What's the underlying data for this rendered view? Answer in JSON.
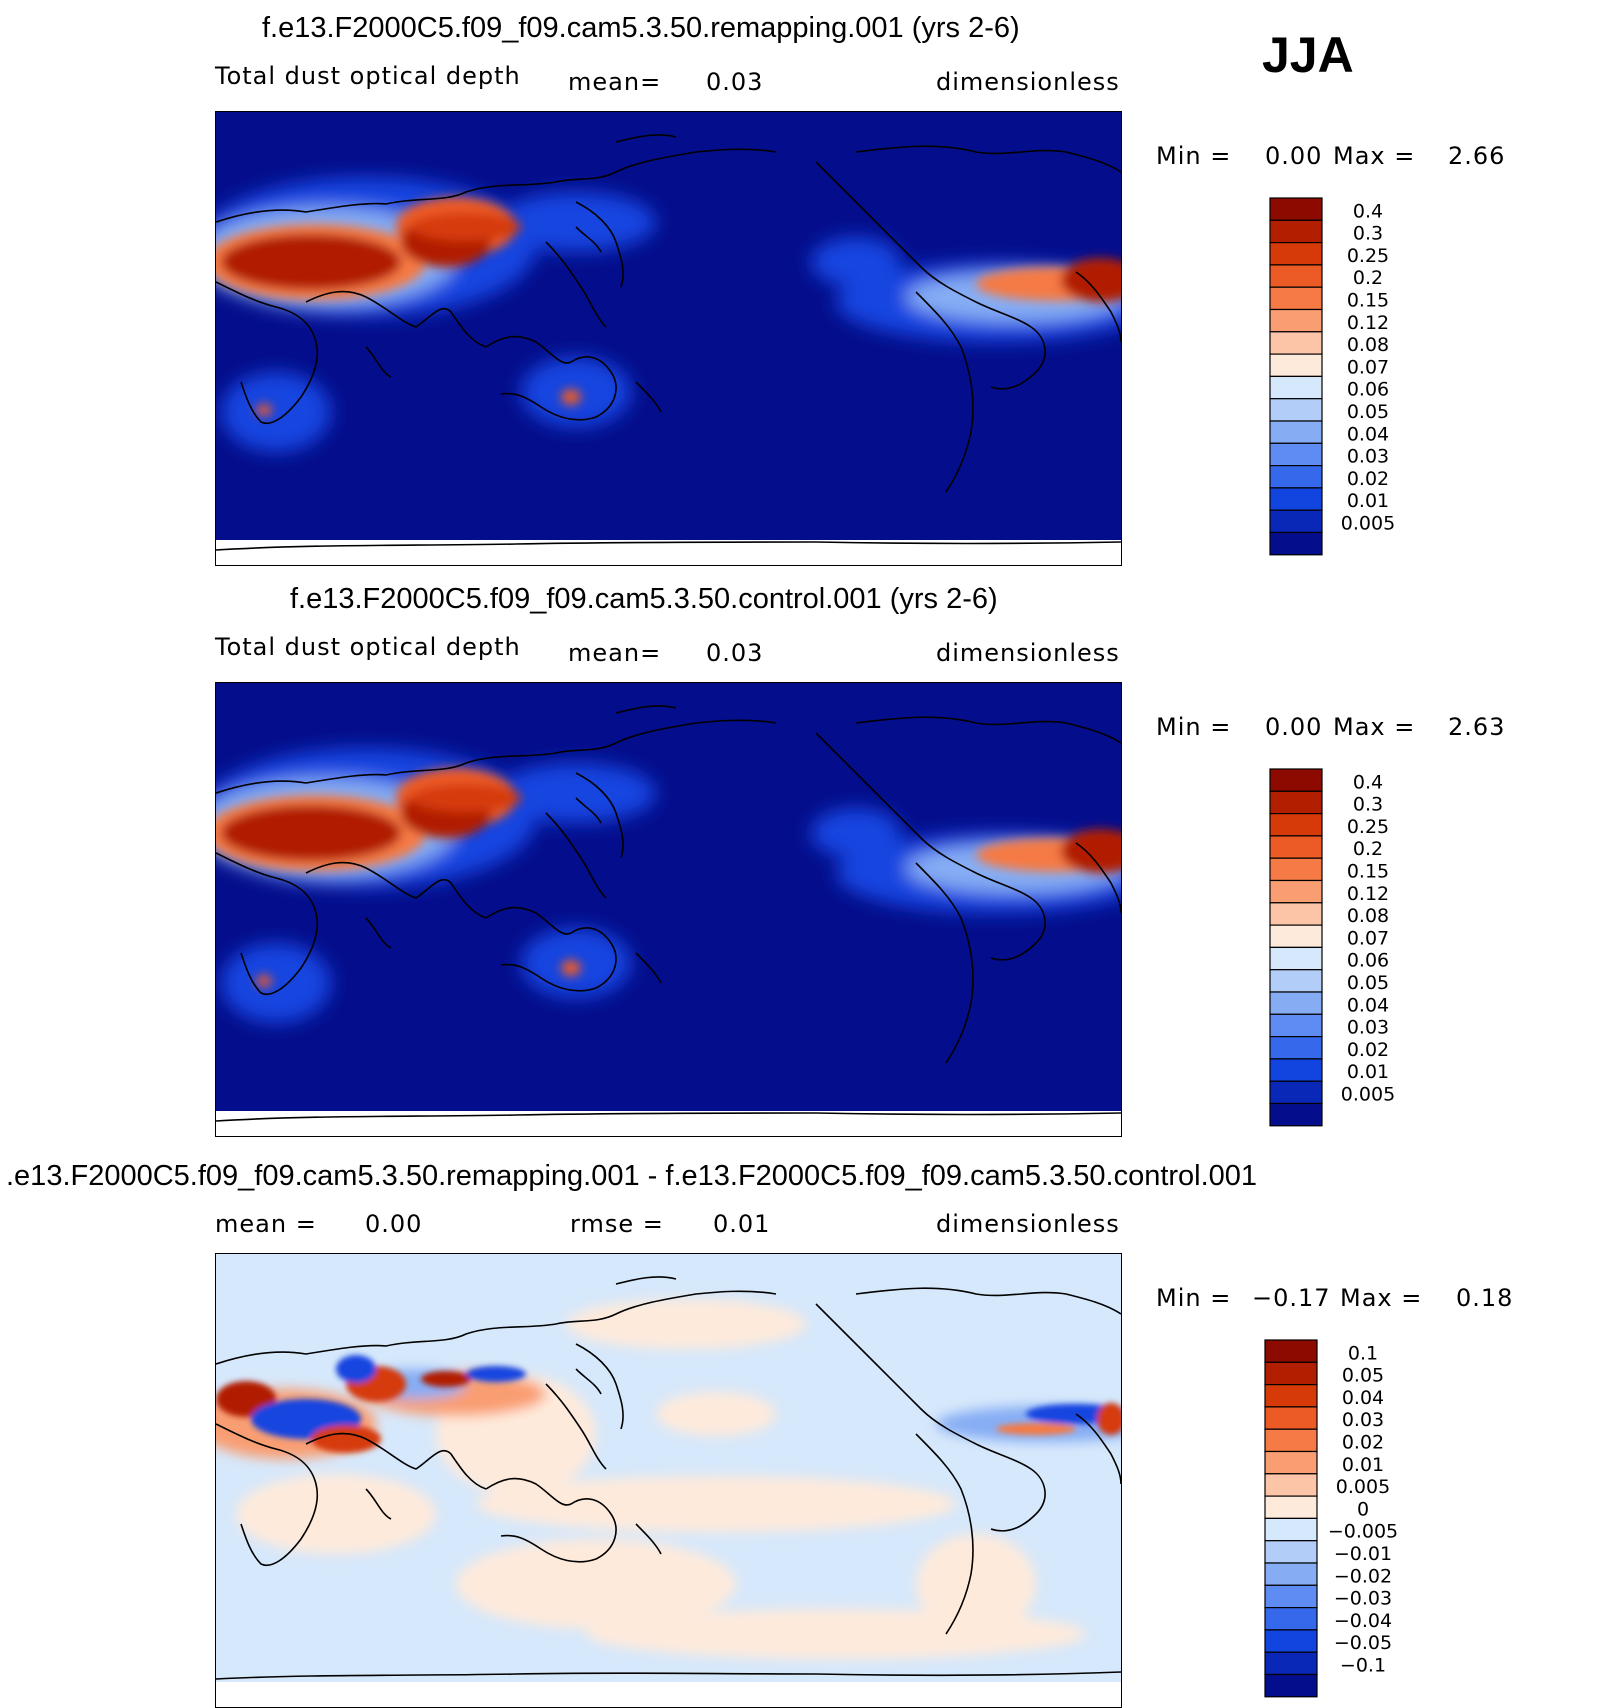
{
  "season_label": "JJA",
  "panels": [
    {
      "title": "f.e13.F2000C5.f09_f09.cam5.3.50.remapping.001 (yrs 2-6)",
      "left_label": "Total dust optical depth",
      "mid_label": "mean=",
      "mid_value": "0.03",
      "units": "dimensionless",
      "min_label": "Min =",
      "min_value": "0.00",
      "max_label": "Max =",
      "max_value": "2.66"
    },
    {
      "title": "f.e13.F2000C5.f09_f09.cam5.3.50.control.001 (yrs 2-6)",
      "left_label": "Total dust optical depth",
      "mid_label": "mean=",
      "mid_value": "0.03",
      "units": "dimensionless",
      "min_label": "Min =",
      "min_value": "0.00",
      "max_label": "Max =",
      "max_value": "2.63"
    },
    {
      "title": ".e13.F2000C5.f09_f09.cam5.3.50.remapping.001 - f.e13.F2000C5.f09_f09.cam5.3.50.control.001",
      "left_label": "mean =",
      "left_value": "0.00",
      "mid_label": "rmse =",
      "mid_value": "0.01",
      "units": "dimensionless",
      "min_label": "Min =",
      "min_value": "−0.17",
      "max_label": "Max =",
      "max_value": "0.18"
    }
  ],
  "chart_data": [
    {
      "type": "heatmap",
      "title": "f.e13.F2000C5.f09_f09.cam5.3.50.remapping.001 (yrs 2-6)",
      "variable": "Total dust optical depth",
      "units": "dimensionless",
      "mean": 0.03,
      "min": 0.0,
      "max": 2.66,
      "colorbar_levels": [
        "0.4",
        "0.3",
        "0.25",
        "0.2",
        "0.15",
        "0.12",
        "0.08",
        "0.07",
        "0.06",
        "0.05",
        "0.04",
        "0.03",
        "0.02",
        "0.01",
        "0.005"
      ],
      "colorbar_colors": [
        "#8c0a00",
        "#b11f00",
        "#d63a08",
        "#ec5a25",
        "#f57a45",
        "#f99e72",
        "#fcc5a8",
        "#feeadb",
        "#d6e8fb",
        "#b2cdf7",
        "#86adf4",
        "#5e8cf2",
        "#3568ea",
        "#1244e0",
        "#0a28b8",
        "#040e8c"
      ]
    },
    {
      "type": "heatmap",
      "title": "f.e13.F2000C5.f09_f09.cam5.3.50.control.001 (yrs 2-6)",
      "variable": "Total dust optical depth",
      "units": "dimensionless",
      "mean": 0.03,
      "min": 0.0,
      "max": 2.63,
      "colorbar_levels": [
        "0.4",
        "0.3",
        "0.25",
        "0.2",
        "0.15",
        "0.12",
        "0.08",
        "0.07",
        "0.06",
        "0.05",
        "0.04",
        "0.03",
        "0.02",
        "0.01",
        "0.005"
      ],
      "colorbar_colors": [
        "#8c0a00",
        "#b11f00",
        "#d63a08",
        "#ec5a25",
        "#f57a45",
        "#f99e72",
        "#fcc5a8",
        "#feeadb",
        "#d6e8fb",
        "#b2cdf7",
        "#86adf4",
        "#5e8cf2",
        "#3568ea",
        "#1244e0",
        "#0a28b8",
        "#040e8c"
      ]
    },
    {
      "type": "heatmap",
      "title": ".e13.F2000C5.f09_f09.cam5.3.50.remapping.001 - f.e13.F2000C5.f09_f09.cam5.3.50.control.001",
      "units": "dimensionless",
      "mean": 0.0,
      "rmse": 0.01,
      "min": -0.17,
      "max": 0.18,
      "colorbar_levels": [
        "0.1",
        "0.05",
        "0.04",
        "0.03",
        "0.02",
        "0.01",
        "0.005",
        "0",
        "−0.005",
        "−0.01",
        "−0.02",
        "−0.03",
        "−0.04",
        "−0.05",
        "−0.1"
      ],
      "colorbar_colors": [
        "#8c0a00",
        "#b11f00",
        "#d63a08",
        "#ec5a25",
        "#f57a45",
        "#f99e72",
        "#fcc5a8",
        "#feeadb",
        "#d6e8fb",
        "#b2cdf7",
        "#86adf4",
        "#5e8cf2",
        "#3568ea",
        "#1244e0",
        "#0a28b8",
        "#040e8c"
      ]
    }
  ]
}
